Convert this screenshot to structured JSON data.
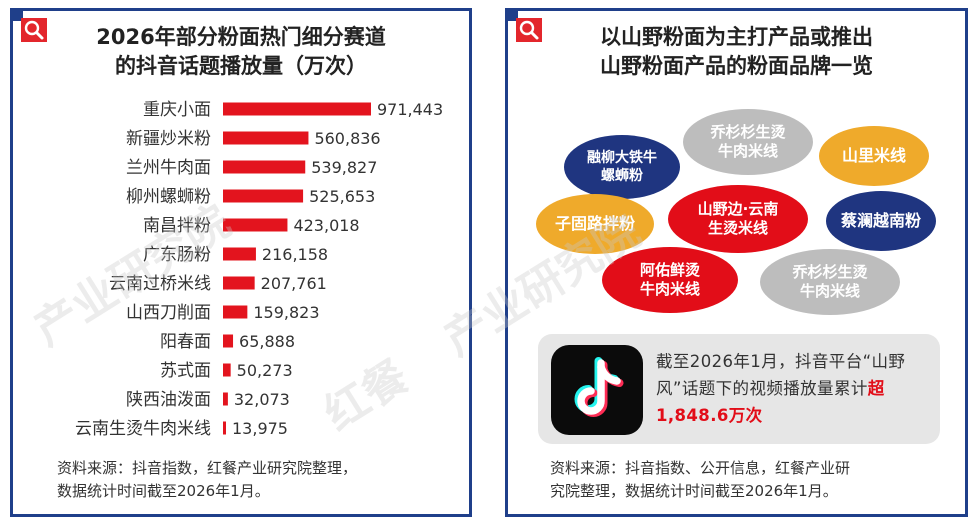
{
  "left": {
    "title_line1": "2026年部分粉面热门细分赛道",
    "title_line2": "的抖音话题播放量（万次）",
    "note_line1": "资料来源：抖音指数，红餐产业研究院整理，",
    "note_line2": "数据统计时间截至2026年1月。"
  },
  "right": {
    "title_line1": "以山野粉面为主打产品或推出",
    "title_line2": "山野粉面产品的粉面品牌一览",
    "brands": [
      {
        "line1": "融柳大铁牛",
        "line2": "螺蛳粉",
        "color": "navy"
      },
      {
        "line1": "乔杉杉生烫",
        "line2": "牛肉米线",
        "color": "gray"
      },
      {
        "line1": "山里米线",
        "line2": "",
        "color": "gold"
      },
      {
        "line1": "子固路拌粉",
        "line2": "",
        "color": "gold"
      },
      {
        "line1": "山野边·云南",
        "line2": "生烫米线",
        "color": "red"
      },
      {
        "line1": "蔡澜越南粉",
        "line2": "",
        "color": "navy"
      },
      {
        "line1": "阿佑鲜烫",
        "line2": "牛肉米线",
        "color": "red"
      },
      {
        "line1": "乔杉杉生烫",
        "line2": "牛肉米线",
        "color": "gray"
      }
    ],
    "info_prefix": "截至2026年1月，抖音平台“山野风”话题下的视频播放量累计",
    "info_highlight": "超1,848.6万次",
    "note_line1": "资料来源：抖音指数、公开信息，红餐产业研",
    "note_line2": "究院整理，数据统计时间截至2026年1月。"
  },
  "watermark": {
    "text1": "产业研究院",
    "text2": "红餐",
    "text3": "产业研究院"
  },
  "colors": {
    "bar": "#e3141e",
    "frame": "#1f3f8a"
  },
  "chart_data": {
    "type": "bar",
    "orientation": "horizontal",
    "categories": [
      "重庆小面",
      "新疆炒米粉",
      "兰州牛肉面",
      "柳州螺蛳粉",
      "南昌拌粉",
      "广东肠粉",
      "云南过桥米线",
      "山西刀削面",
      "阳春面",
      "苏式面",
      "陕西油泼面",
      "云南生烫牛肉米线"
    ],
    "values": [
      971443,
      560836,
      539827,
      525653,
      423018,
      216158,
      207761,
      159823,
      65888,
      50273,
      32073,
      13975
    ],
    "value_labels": [
      "971,443",
      "560,836",
      "539,827",
      "525,653",
      "423,018",
      "216,158",
      "207,761",
      "159,823",
      "65,888",
      "50,273",
      "32,073",
      "13,975"
    ],
    "xlabel": "",
    "ylabel": ""
  }
}
